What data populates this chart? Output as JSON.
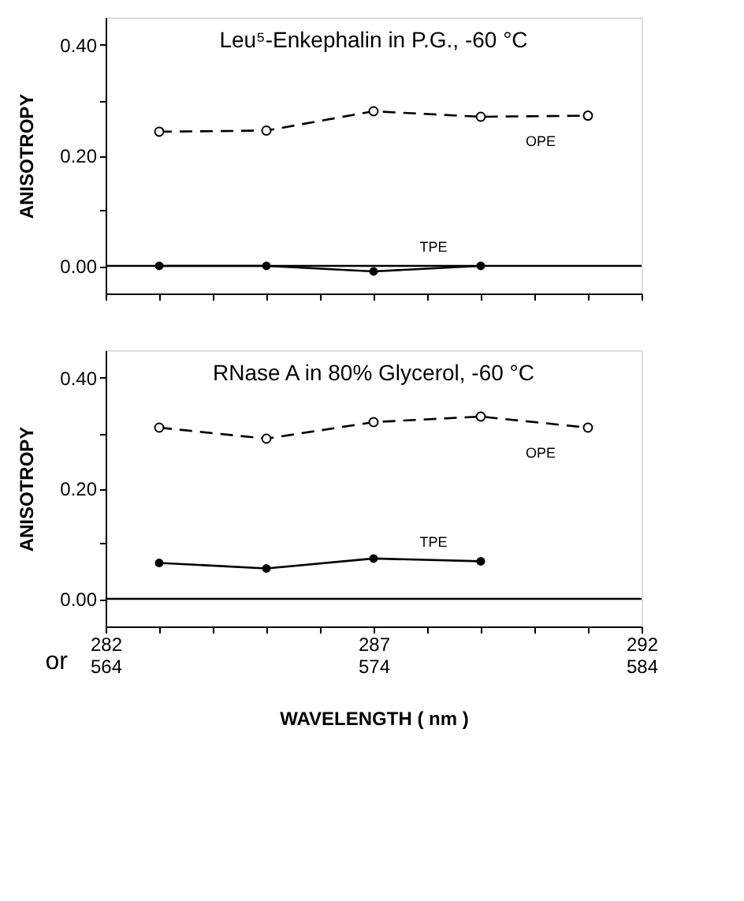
{
  "chart_data": [
    {
      "type": "line",
      "title": "Leu⁵-Enkephalin in P.G., -60 °C",
      "ylabel": "ANISOTROPY",
      "x": [
        283,
        285,
        287,
        289,
        291
      ],
      "series": [
        {
          "name": "OPE",
          "color": "#000000",
          "line_style": "dashed",
          "values": [
            0.243,
            0.245,
            0.28,
            0.27,
            0.272
          ]
        },
        {
          "name": "TPE",
          "color": "#000000",
          "line_style": "solid",
          "values": [
            0.0,
            0.0,
            -0.01,
            0.0,
            null
          ]
        }
      ],
      "xlim": [
        282,
        292
      ],
      "xticks": [
        282,
        {
          "value": 283,
          "label": null
        },
        {
          "value": 284,
          "label": null
        },
        {
          "value": 285,
          "label": null
        },
        {
          "value": 286,
          "label": null
        },
        287,
        {
          "value": 288,
          "label": null
        },
        {
          "value": 289,
          "label": null
        },
        {
          "value": 290,
          "label": null
        },
        {
          "value": 291,
          "label": null
        },
        292
      ],
      "ylim": [
        -0.05,
        0.45
      ],
      "yticks": [
        {
          "value": 0,
          "label": "0.00"
        },
        {
          "value": 0.1,
          "label": null
        },
        {
          "value": 0.2,
          "label": "0.20"
        },
        {
          "value": 0.3,
          "label": null
        },
        {
          "value": 0.4,
          "label": "0.40"
        }
      ],
      "ref_lines": [
        {
          "axis": "y",
          "value": 0
        }
      ],
      "marker": "circle",
      "grid": false,
      "tick_labels": "y"
    },
    {
      "type": "line",
      "title": "RNase A in 80% Glycerol, -60 °C",
      "ylabel": "ANISOTROPY",
      "xlabel": "WAVELENGTH ( nm )",
      "x": [
        283,
        285,
        287,
        289,
        291
      ],
      "series": [
        {
          "name": "OPE",
          "color": "#000000",
          "line_style": "dashed",
          "values": [
            0.31,
            0.29,
            0.32,
            0.33,
            0.31
          ]
        },
        {
          "name": "TPE",
          "color": "#000000",
          "line_style": "solid",
          "values": [
            0.065,
            0.055,
            0.073,
            0.068,
            null
          ]
        }
      ],
      "xlim": [
        282,
        292
      ],
      "xticks": [
        282,
        {
          "value": 283,
          "label": null
        },
        {
          "value": 284,
          "label": null
        },
        {
          "value": 285,
          "label": null
        },
        {
          "value": 286,
          "label": null
        },
        287,
        {
          "value": 288,
          "label": null
        },
        {
          "value": 289,
          "label": null
        },
        {
          "value": 290,
          "label": null
        },
        {
          "value": 291,
          "label": null
        },
        292
      ],
      "x2lim": [
        564,
        584
      ],
      "x2ticks": [
        564,
        574,
        584
      ],
      "ylim": [
        -0.05,
        0.45
      ],
      "yticks": [
        {
          "value": 0,
          "label": "0.00"
        },
        {
          "value": 0.1,
          "label": null
        },
        {
          "value": 0.2,
          "label": "0.20"
        },
        {
          "value": 0.3,
          "label": null
        },
        {
          "value": 0.4,
          "label": "0.40"
        }
      ],
      "ref_lines": [
        {
          "axis": "y",
          "value": 0
        }
      ],
      "marker": "circle",
      "grid": false,
      "annotations": [
        "or"
      ]
    }
  ]
}
